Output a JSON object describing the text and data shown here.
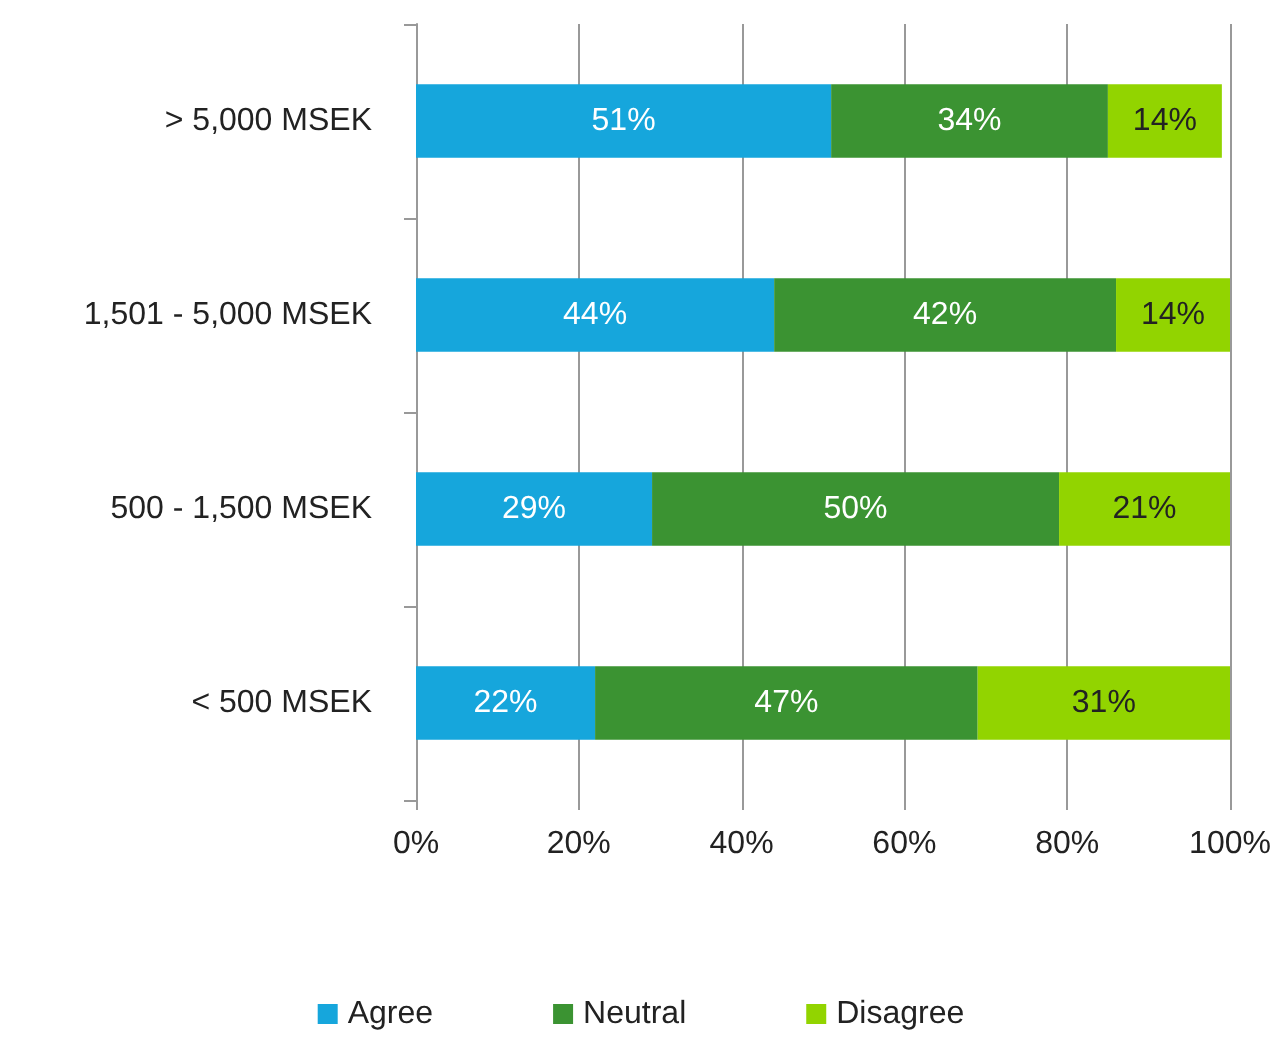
{
  "chart_data": {
    "type": "bar",
    "orientation": "horizontal",
    "stacked": true,
    "categories": [
      "> 5,000 MSEK",
      "1,501 - 5,000 MSEK",
      "500 - 1,500 MSEK",
      "< 500 MSEK"
    ],
    "series": [
      {
        "name": "Agree",
        "color": "#16a6dc",
        "values": [
          51,
          44,
          29,
          22
        ],
        "value_labels": [
          "51%",
          "44%",
          "29%",
          "22%"
        ]
      },
      {
        "name": "Neutral",
        "color": "#3b9332",
        "values": [
          34,
          42,
          50,
          47
        ],
        "value_labels": [
          "34%",
          "42%",
          "50%",
          "47%"
        ]
      },
      {
        "name": "Disagree",
        "color": "#92d400",
        "values": [
          14,
          14,
          21,
          31
        ],
        "value_labels": [
          "14%",
          "14%",
          "21%",
          "31%"
        ]
      }
    ],
    "xlim": [
      0,
      100
    ],
    "xticks": [
      {
        "value": 0,
        "label": "0%"
      },
      {
        "value": 20,
        "label": "20%"
      },
      {
        "value": 40,
        "label": "40%"
      },
      {
        "value": 60,
        "label": "60%"
      },
      {
        "value": 80,
        "label": "80%"
      },
      {
        "value": 100,
        "label": "100%"
      }
    ],
    "grid": "x",
    "legend": "bottom"
  }
}
